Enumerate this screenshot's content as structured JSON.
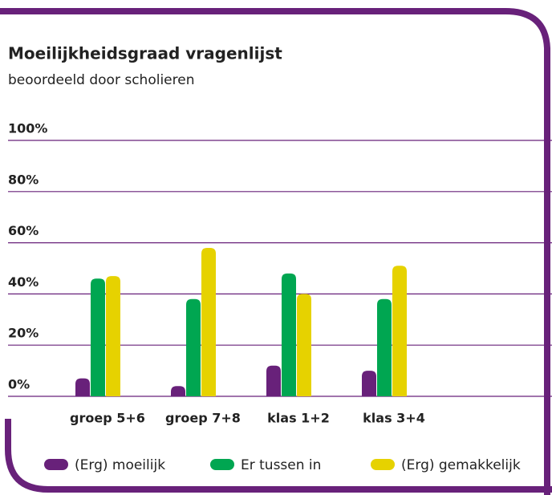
{
  "chart_data": {
    "type": "bar",
    "title": "Moeilijkheidsgraad vragenlijst",
    "subtitle": "beoordeeld door scholieren",
    "categories": [
      "groep 5+6",
      "groep 7+8",
      "klas 1+2",
      "klas 3+4"
    ],
    "series": [
      {
        "name": "(Erg) moeilijk",
        "color": "#68217a",
        "values": [
          7,
          4,
          12,
          10
        ]
      },
      {
        "name": "Er tussen in",
        "color": "#00a651",
        "values": [
          46,
          38,
          48,
          38
        ]
      },
      {
        "name": "(Erg) gemakkelijk",
        "color": "#e6d200",
        "values": [
          47,
          58,
          40,
          51
        ]
      }
    ],
    "ylim": [
      0,
      100
    ],
    "yticks": [
      {
        "value": 0,
        "label": "0%"
      },
      {
        "value": 20,
        "label": "20%"
      },
      {
        "value": 40,
        "label": "40%"
      },
      {
        "value": 60,
        "label": "60%"
      },
      {
        "value": 80,
        "label": "80%"
      },
      {
        "value": 100,
        "label": "100%"
      }
    ],
    "grid": true,
    "legend": "bottom"
  }
}
